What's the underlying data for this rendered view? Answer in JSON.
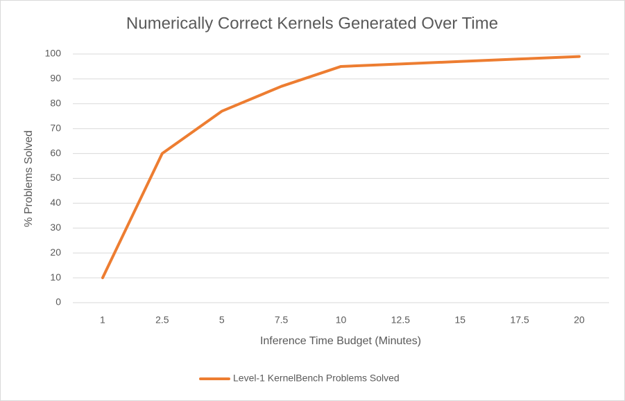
{
  "chart_data": {
    "type": "line",
    "title": "Numerically Correct Kernels Generated Over Time",
    "x_label": "Inference Time Budget (Minutes)",
    "y_label": "%  Problems Solved",
    "categories": [
      "1",
      "2.5",
      "5",
      "7.5",
      "10",
      "12.5",
      "15",
      "17.5",
      "20"
    ],
    "series": [
      {
        "name": "Level-1 KernelBench Problems Solved",
        "color": "#ed7d31",
        "values": [
          10,
          60,
          77,
          87,
          95,
          96,
          97,
          98,
          99
        ]
      }
    ],
    "ylim": [
      0,
      100
    ],
    "yticks": [
      0,
      10,
      20,
      30,
      40,
      50,
      60,
      70,
      80,
      90,
      100
    ],
    "grid": true,
    "legend": "bottom"
  }
}
